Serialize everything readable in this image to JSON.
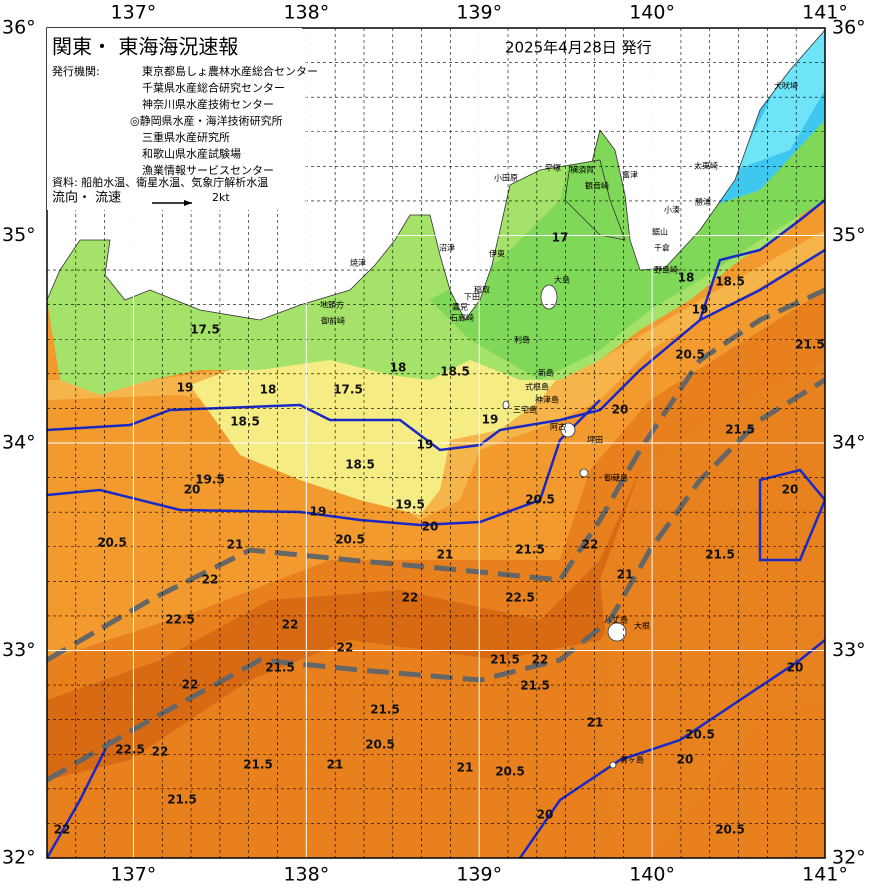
{
  "header": {
    "title": "関東・ 東海海況速報",
    "date": "2025年4月28日 発行",
    "issuer_label": "発行機関:",
    "issuers": [
      "東京都島しょ農林水産総合センター",
      "千葉県水産総合研究センター",
      "神奈川県水産技術センター",
      "◎静岡県水産・海洋技術研究所",
      "三重県水産研究所",
      "和歌山県水産試験場",
      "漁業情報サービスセンター"
    ],
    "sources": "資料: 船舶水温、衛星水温、気象庁解析水温",
    "flow_label": "流向・ 流速",
    "flow_scale": "2kt"
  },
  "map": {
    "lon_ticks": [
      {
        "value": 137,
        "label": "137°"
      },
      {
        "value": 138,
        "label": "138°"
      },
      {
        "value": 139,
        "label": "139°"
      },
      {
        "value": 140,
        "label": "140°"
      },
      {
        "value": 141,
        "label": "141°"
      }
    ],
    "lat_ticks": [
      {
        "value": 32,
        "label": "32°"
      },
      {
        "value": 33,
        "label": "33°"
      },
      {
        "value": 34,
        "label": "34°"
      },
      {
        "value": 35,
        "label": "35°"
      },
      {
        "value": 36,
        "label": "36°"
      }
    ],
    "place_names": [
      "犬吠埼",
      "太東崎",
      "勝浦",
      "小湊",
      "鋸山",
      "千倉",
      "野島崎",
      "富津",
      "横須賀",
      "観音崎",
      "平塚",
      "小田原",
      "伊東",
      "沼津",
      "焼津",
      "地頭方",
      "御前崎",
      "稲取",
      "下田",
      "石廊崎",
      "雲見",
      "大島",
      "利島",
      "新島",
      "式根島",
      "神津島",
      "三宅島",
      "阿古",
      "坪田",
      "御蔵島",
      "八丈島",
      "大根",
      "青ヶ島"
    ],
    "isotherm_labels": [
      "17.5",
      "19",
      "18",
      "18.5",
      "17.5",
      "18",
      "18.5",
      "19",
      "19",
      "19.5",
      "20",
      "18.5",
      "19",
      "19.5",
      "20",
      "20.5",
      "21",
      "22",
      "22.5",
      "20.5",
      "21",
      "22",
      "22.5",
      "21.5",
      "22",
      "22",
      "21.5",
      "21.5",
      "22",
      "21.5",
      "21",
      "22",
      "22",
      "22.5",
      "21.5",
      "20.5",
      "21",
      "21",
      "20.5",
      "21.5",
      "21.5",
      "22",
      "20",
      "20",
      "20.5",
      "20",
      "20.5",
      "18",
      "18.5",
      "19",
      "20.5",
      "21.5",
      "21.5",
      "21.5",
      "20",
      "21",
      "22",
      "20.5",
      "20",
      "17"
    ]
  }
}
